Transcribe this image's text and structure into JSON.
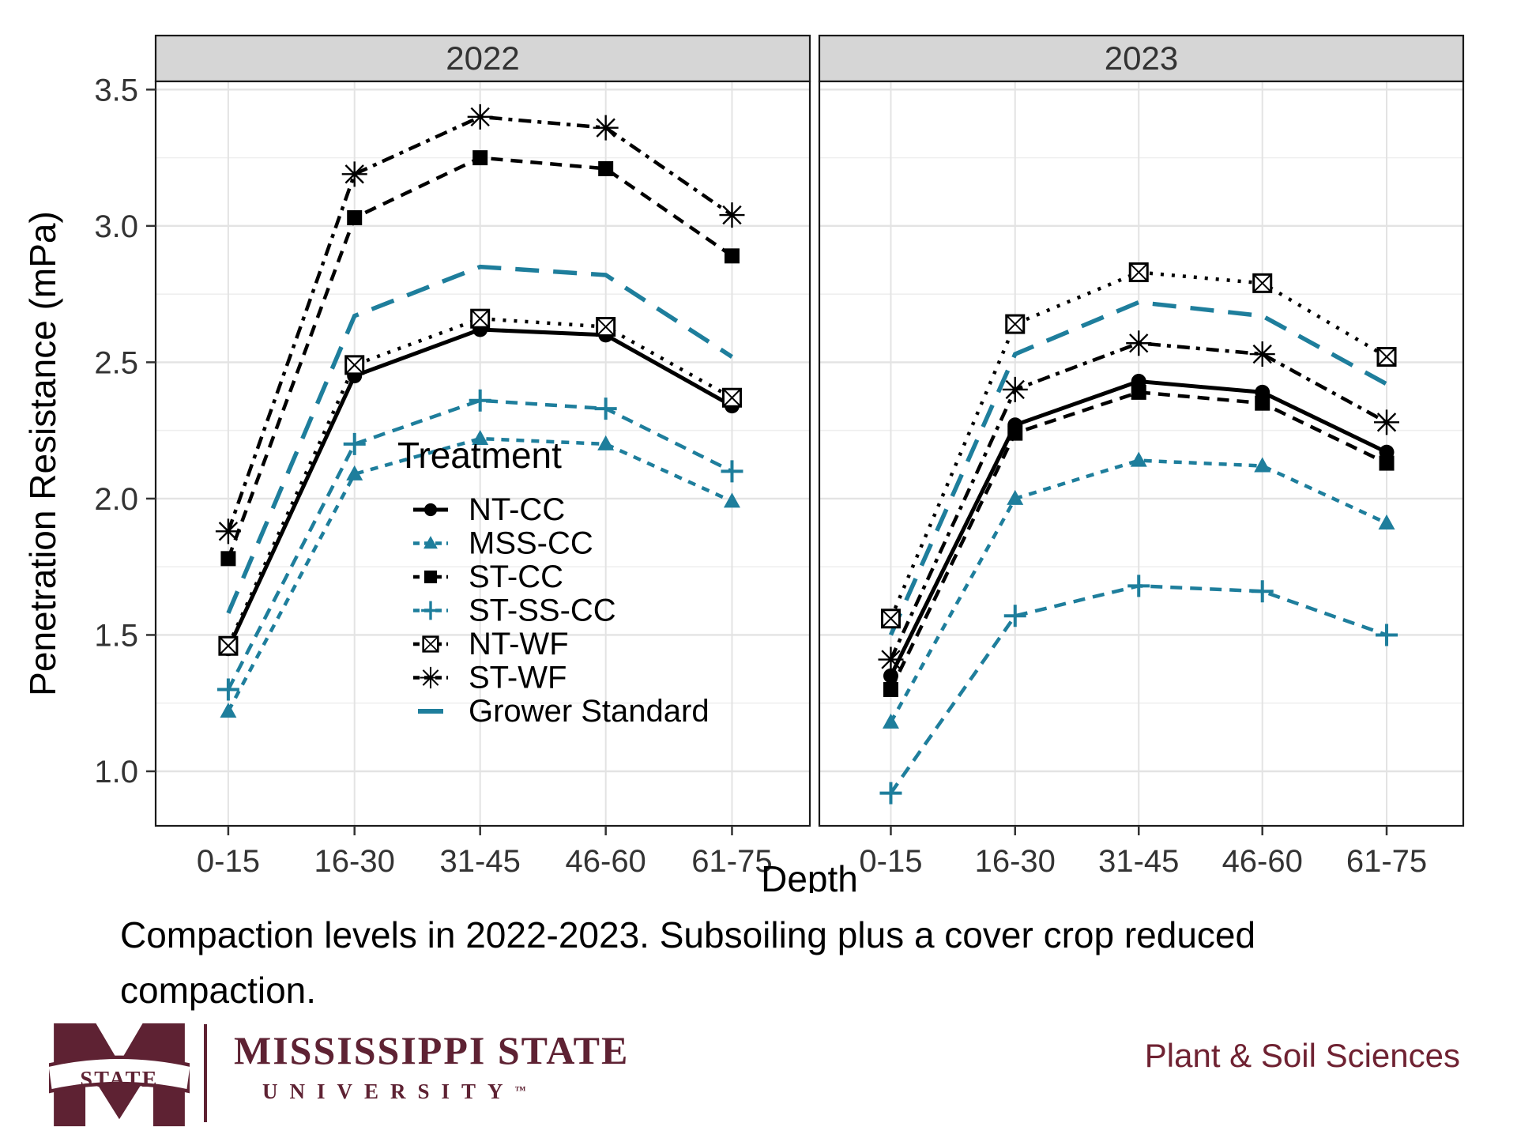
{
  "chart": {
    "panels": [
      "2022",
      "2023"
    ],
    "y_axis": {
      "title": "Penetration Resistance (mPa)",
      "ticks": [
        1.0,
        1.5,
        2.0,
        2.5,
        3.0,
        3.5
      ],
      "range": [
        0.8,
        3.53
      ]
    },
    "x_axis": {
      "title": "Depth",
      "categories": [
        "0-15",
        "16-30",
        "31-45",
        "46-60",
        "61-75"
      ]
    },
    "legend": {
      "title": "Treatment",
      "items": [
        {
          "label": "NT-CC",
          "marker": "circle",
          "line": "solid",
          "color": "#000000"
        },
        {
          "label": "MSS-CC",
          "marker": "triangle",
          "line": "dashed",
          "color": "#1E7E9C"
        },
        {
          "label": "ST-CC",
          "marker": "square",
          "line": "longdash",
          "color": "#000000"
        },
        {
          "label": "ST-SS-CC",
          "marker": "plus",
          "line": "longdash",
          "color": "#1E7E9C"
        },
        {
          "label": "NT-WF",
          "marker": "square-x",
          "line": "dotted",
          "color": "#000000"
        },
        {
          "label": "ST-WF",
          "marker": "asterisk",
          "line": "dashdot",
          "color": "#000000"
        },
        {
          "label": "Grower Standard",
          "marker": "none",
          "line": "grower-dash",
          "color": "#1E7E9C"
        }
      ]
    }
  },
  "chart_data": [
    {
      "type": "line",
      "panel": "2022",
      "categories": [
        "0-15",
        "16-30",
        "31-45",
        "46-60",
        "61-75"
      ],
      "series": [
        {
          "name": "NT-CC",
          "values": [
            1.45,
            2.45,
            2.62,
            2.6,
            2.34
          ]
        },
        {
          "name": "MSS-CC",
          "values": [
            1.22,
            2.09,
            2.22,
            2.2,
            1.99
          ]
        },
        {
          "name": "ST-CC",
          "values": [
            1.78,
            3.03,
            3.25,
            3.21,
            2.89
          ]
        },
        {
          "name": "ST-SS-CC",
          "values": [
            1.3,
            2.2,
            2.36,
            2.33,
            2.1
          ]
        },
        {
          "name": "NT-WF",
          "values": [
            1.46,
            2.49,
            2.66,
            2.63,
            2.37
          ]
        },
        {
          "name": "ST-WF",
          "values": [
            1.88,
            3.19,
            3.4,
            3.36,
            3.04
          ]
        },
        {
          "name": "Grower Standard",
          "values": [
            1.58,
            2.67,
            2.85,
            2.82,
            2.52
          ]
        }
      ],
      "xlabel": "Depth",
      "ylabel": "Penetration Resistance (mPa)",
      "ylim": [
        0.8,
        3.53
      ],
      "yticks": [
        1.0,
        1.5,
        2.0,
        2.5,
        3.0,
        3.5
      ],
      "grid": "on",
      "legend_position": "inside-lower-right-of-2022-panel"
    },
    {
      "type": "line",
      "panel": "2023",
      "categories": [
        "0-15",
        "16-30",
        "31-45",
        "46-60",
        "61-75"
      ],
      "series": [
        {
          "name": "NT-CC",
          "values": [
            1.35,
            2.27,
            2.43,
            2.39,
            2.17
          ]
        },
        {
          "name": "MSS-CC",
          "values": [
            1.18,
            2.0,
            2.14,
            2.12,
            1.91
          ]
        },
        {
          "name": "ST-CC",
          "values": [
            1.3,
            2.24,
            2.39,
            2.35,
            2.13
          ]
        },
        {
          "name": "ST-SS-CC",
          "values": [
            0.92,
            1.57,
            1.68,
            1.66,
            1.5
          ]
        },
        {
          "name": "NT-WF",
          "values": [
            1.56,
            2.64,
            2.83,
            2.79,
            2.52
          ]
        },
        {
          "name": "ST-WF",
          "values": [
            1.41,
            2.4,
            2.57,
            2.53,
            2.28
          ]
        },
        {
          "name": "Grower Standard",
          "values": [
            1.5,
            2.53,
            2.72,
            2.67,
            2.42
          ]
        }
      ],
      "xlabel": "Depth",
      "ylabel": "Penetration Resistance (mPa)",
      "ylim": [
        0.8,
        3.53
      ],
      "yticks": [
        1.0,
        1.5,
        2.0,
        2.5,
        3.0,
        3.5
      ],
      "grid": "on"
    }
  ],
  "caption": {
    "line1": "Compaction levels in 2022-2023. Subsoiling plus a cover crop reduced",
    "line2": "compaction."
  },
  "footer": {
    "logo_banner": "STATE",
    "wordmark_line1": "MISSISSIPPI STATE",
    "wordmark_line2": "UNIVERSITY",
    "trademark": "™",
    "department": "Plant & Soil Sciences",
    "maroon": "#5E2233"
  },
  "colors": {
    "teal": "#1E7E9C",
    "black": "#000000",
    "strip_fill": "#D6D6D6",
    "panel_border": "#1A1A1A",
    "grid_major": "#E3E3E3",
    "grid_minor": "#EFEFEF"
  }
}
